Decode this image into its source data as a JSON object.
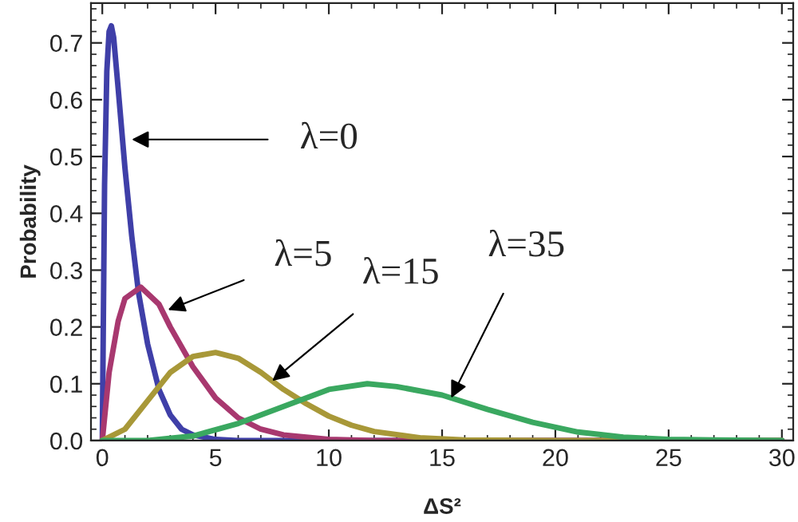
{
  "chart_data": {
    "type": "line",
    "xlabel": "ΔS²",
    "ylabel": "Probability",
    "xlim": [
      -0.5,
      30.5
    ],
    "ylim": [
      0,
      0.77
    ],
    "xticks": [
      0,
      5,
      10,
      15,
      20,
      25,
      30
    ],
    "yticks": [
      {
        "value": 0,
        "label": "0.0"
      },
      0.1,
      0.2,
      0.3,
      0.4,
      0.5,
      0.6,
      0.7
    ],
    "grid": false,
    "legend": false,
    "marker": "none",
    "line_style": "solid",
    "series": [
      {
        "color": "#3f3fa8",
        "x": [
          0,
          0.1,
          0.2,
          0.3,
          0.4,
          0.5,
          0.7,
          1,
          1.3,
          1.6,
          2,
          2.5,
          3,
          3.5,
          4,
          5,
          6,
          30
        ],
        "values": [
          0,
          0.45,
          0.65,
          0.72,
          0.73,
          0.71,
          0.62,
          0.48,
          0.36,
          0.26,
          0.17,
          0.09,
          0.045,
          0.02,
          0.01,
          0.002,
          0,
          0
        ]
      },
      {
        "color": "#a8386f",
        "x": [
          0,
          0.3,
          0.7,
          1,
          1.7,
          2.5,
          3,
          4,
          5,
          6,
          7,
          8,
          10,
          12,
          30
        ],
        "values": [
          0,
          0.12,
          0.21,
          0.25,
          0.27,
          0.24,
          0.2,
          0.13,
          0.075,
          0.04,
          0.02,
          0.01,
          0.002,
          0,
          0
        ]
      },
      {
        "color": "#a89838",
        "x": [
          0,
          1,
          2,
          3,
          4,
          5,
          6,
          7,
          8,
          9,
          10,
          11,
          12,
          14,
          16,
          20,
          30
        ],
        "values": [
          0,
          0.02,
          0.07,
          0.12,
          0.148,
          0.155,
          0.145,
          0.12,
          0.09,
          0.065,
          0.043,
          0.027,
          0.016,
          0.005,
          0.001,
          0,
          0
        ]
      },
      {
        "color": "#3aa860",
        "x": [
          0,
          2,
          4,
          6,
          8,
          10,
          11.7,
          13,
          15,
          17,
          19,
          21,
          23,
          25,
          27,
          30
        ],
        "values": [
          0,
          0,
          0.008,
          0.03,
          0.06,
          0.09,
          0.1,
          0.095,
          0.08,
          0.055,
          0.032,
          0.015,
          0.006,
          0.002,
          0.001,
          0
        ]
      }
    ],
    "annotations": [
      {
        "text": "λ=0",
        "x": 1.3,
        "y": 0.53
      },
      {
        "text": "λ=5",
        "x": 2.9,
        "y": 0.23
      },
      {
        "text": "λ=15",
        "x": 7.5,
        "y": 0.105
      },
      {
        "text": "λ=35",
        "x": 15.4,
        "y": 0.075
      }
    ]
  }
}
